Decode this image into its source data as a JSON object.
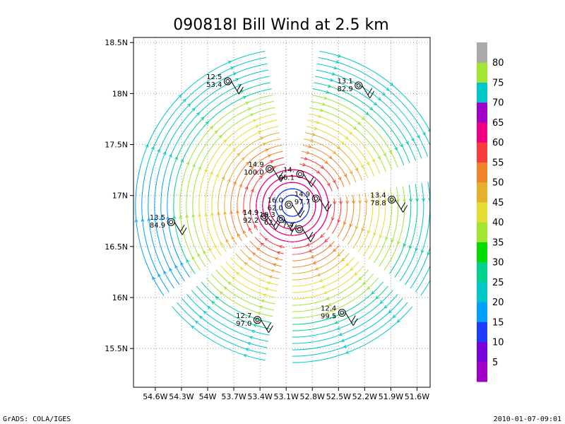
{
  "chart_data": {
    "type": "vector-field",
    "title": "090818I Bill Wind at 2.5 km",
    "xlabel": "",
    "ylabel": "",
    "x_ticks": [
      "54.6W",
      "54.3W",
      "54W",
      "53.7W",
      "53.4W",
      "53.1W",
      "52.8W",
      "52.5W",
      "52.2W",
      "51.9W",
      "51.6W"
    ],
    "x_tick_values": [
      -54.6,
      -54.3,
      -54.0,
      -53.7,
      -53.4,
      -53.1,
      -52.8,
      -52.5,
      -52.2,
      -51.9,
      -51.6
    ],
    "y_ticks": [
      "15.5N",
      "16N",
      "16.5N",
      "17N",
      "17.5N",
      "18N",
      "18.5N"
    ],
    "y_tick_values": [
      15.5,
      16.0,
      16.5,
      17.0,
      17.5,
      18.0,
      18.5
    ],
    "xlim": [
      -54.85,
      -51.45
    ],
    "ylim": [
      15.12,
      18.55
    ],
    "grid": true,
    "center": {
      "lon": -53.03,
      "lat": 16.9
    },
    "colorbar": {
      "labels": [
        "5",
        "10",
        "15",
        "20",
        "25",
        "30",
        "35",
        "40",
        "45",
        "50",
        "55",
        "60",
        "65",
        "70",
        "75",
        "80"
      ],
      "colors": [
        "#a000c8",
        "#7a00dc",
        "#1e3cff",
        "#00a0ff",
        "#00c8c8",
        "#00d28c",
        "#00dc00",
        "#a0e632",
        "#e6dc32",
        "#e6af2d",
        "#f08228",
        "#fa3c3c",
        "#f00082",
        "#a000c8",
        "#00c8c8",
        "#a0e632",
        "#aaaaaa"
      ]
    },
    "stations": [
      {
        "lon": -53.77,
        "lat": 18.12,
        "top": "12.5",
        "bottom": "53.4"
      },
      {
        "lon": -52.27,
        "lat": 18.08,
        "top": "13.1",
        "bottom": "82.9"
      },
      {
        "lon": -53.29,
        "lat": 17.26,
        "top": "14.9",
        "bottom": "100.0"
      },
      {
        "lon": -52.94,
        "lat": 17.21,
        "top": "14.",
        "bottom": "96.1"
      },
      {
        "lon": -53.07,
        "lat": 16.91,
        "top": "16.0",
        "bottom": "62.0"
      },
      {
        "lon": -52.76,
        "lat": 16.97,
        "top": "14.9",
        "bottom": "97.7"
      },
      {
        "lon": -51.89,
        "lat": 16.96,
        "top": "13.4",
        "bottom": "78.8"
      },
      {
        "lon": -54.42,
        "lat": 16.74,
        "top": "13.5",
        "bottom": "84.9"
      },
      {
        "lon": -53.35,
        "lat": 16.79,
        "top": "14.9",
        "bottom": "92.2"
      },
      {
        "lon": -53.16,
        "lat": 16.77,
        "top": "19.3",
        "bottom": "62."
      },
      {
        "lon": -52.95,
        "lat": 16.67,
        "top": "7.4",
        "bottom": "7"
      },
      {
        "lon": -53.43,
        "lat": 15.78,
        "top": "12.7",
        "bottom": "97.0"
      },
      {
        "lon": -52.46,
        "lat": 15.85,
        "top": "12.4",
        "bottom": "99.5"
      }
    ]
  },
  "footer": {
    "left": "GrADS: COLA/IGES",
    "right": "2010-01-07-09:01"
  }
}
